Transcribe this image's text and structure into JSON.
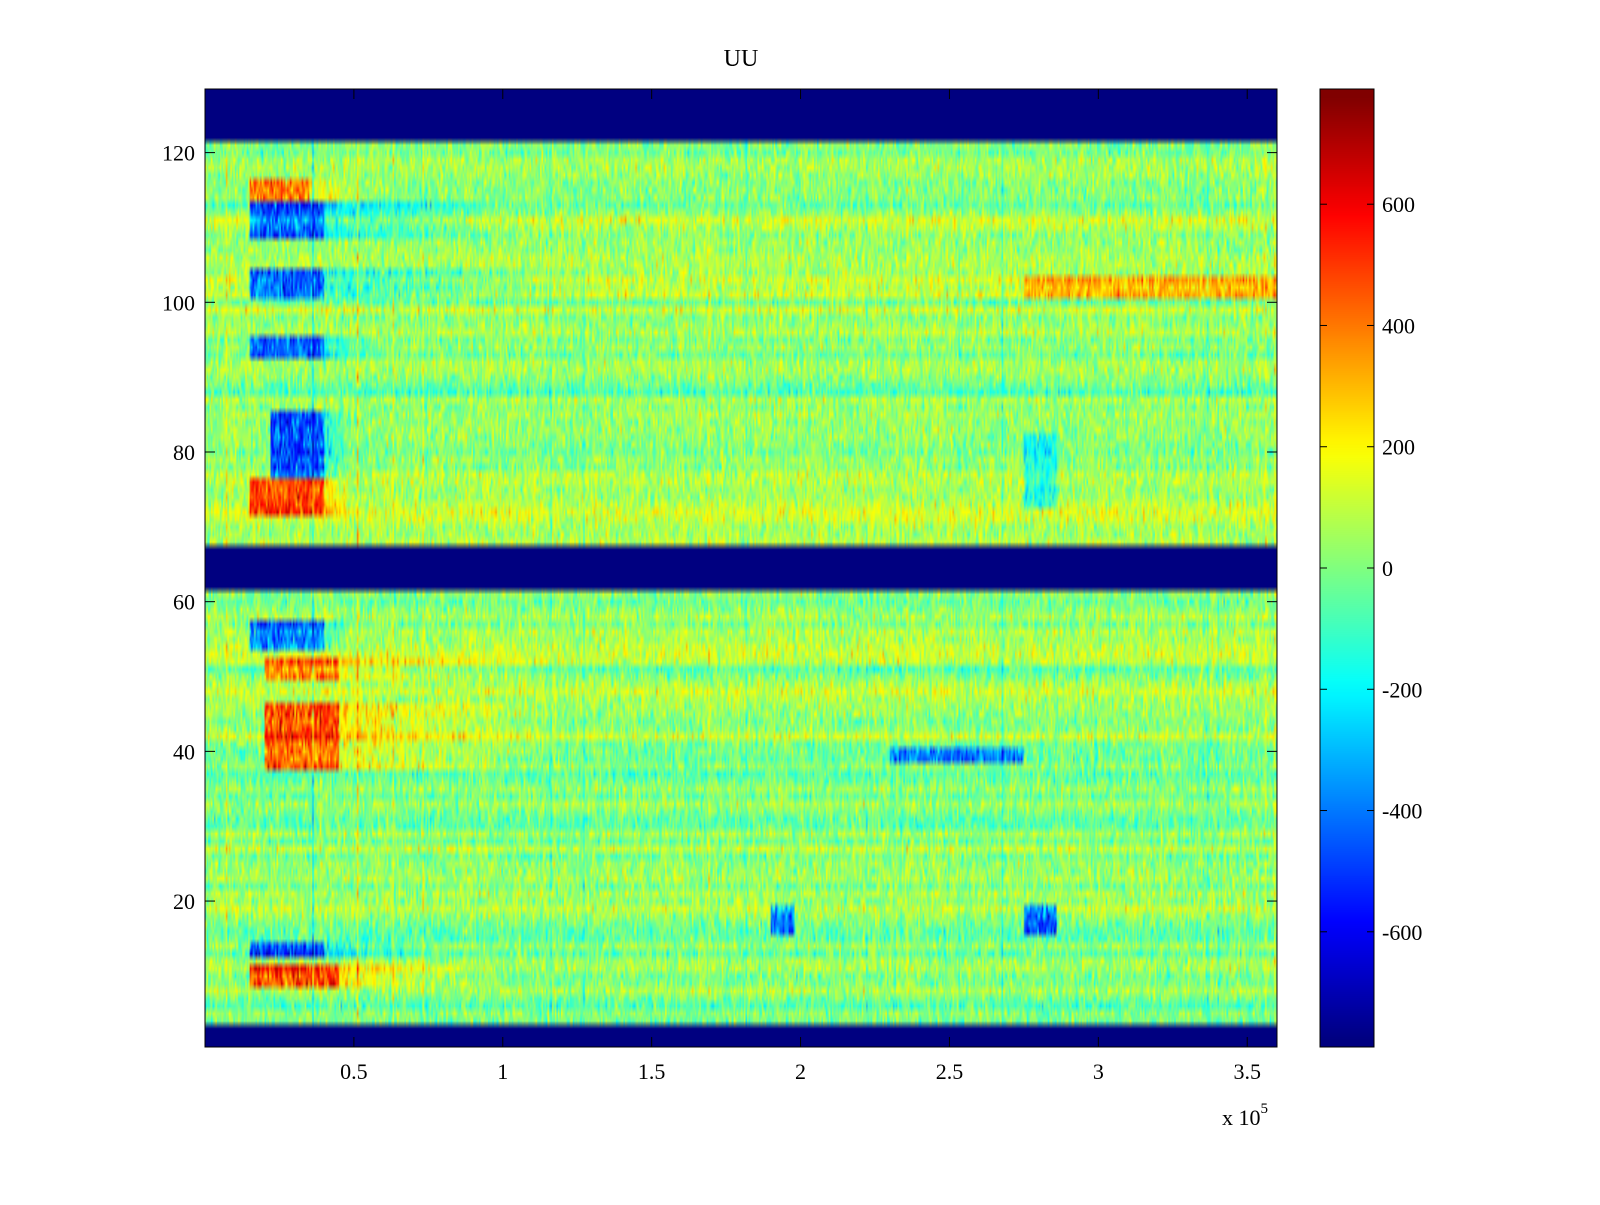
{
  "chart_data": {
    "type": "heatmap",
    "title": "UU",
    "xlabel": "",
    "ylabel": "",
    "x_multiplier_label": "x 10",
    "x_multiplier_exponent": "5",
    "xlim": [
      0,
      3.6
    ],
    "ylim": [
      0.5,
      128.5
    ],
    "x_ticks": [
      {
        "value": 0.5,
        "label": "0.5"
      },
      {
        "value": 1,
        "label": "1"
      },
      {
        "value": 1.5,
        "label": "1.5"
      },
      {
        "value": 2,
        "label": "2"
      },
      {
        "value": 2.5,
        "label": "2.5"
      },
      {
        "value": 3,
        "label": "3"
      },
      {
        "value": 3.5,
        "label": "3.5"
      }
    ],
    "y_ticks": [
      {
        "value": 20,
        "label": "20"
      },
      {
        "value": 40,
        "label": "40"
      },
      {
        "value": 60,
        "label": "60"
      },
      {
        "value": 80,
        "label": "80"
      },
      {
        "value": 100,
        "label": "100"
      },
      {
        "value": 120,
        "label": "120"
      }
    ],
    "colorbar": {
      "colormap": "jet",
      "limits": [
        -790,
        790
      ],
      "ticks": [
        {
          "value": -600,
          "label": "-600"
        },
        {
          "value": -400,
          "label": "-400"
        },
        {
          "value": -200,
          "label": "-200"
        },
        {
          "value": 0,
          "label": "0"
        },
        {
          "value": 200,
          "label": "200"
        },
        {
          "value": 400,
          "label": "400"
        },
        {
          "value": 600,
          "label": "600"
        }
      ]
    },
    "masked_rows": [
      [
        1,
        3
      ],
      [
        62,
        67
      ],
      [
        122,
        128
      ]
    ],
    "masked_value": -790,
    "base_value": 30,
    "row_offsets": [
      {
        "rows": [
          101,
          103
        ],
        "value": 80
      },
      {
        "rows": [
          110,
          112
        ],
        "value": 60
      },
      {
        "rows": [
          70,
          76
        ],
        "value": 40
      },
      {
        "rows": [
          52,
          56
        ],
        "value": 30
      },
      {
        "rows": [
          5,
          20
        ],
        "value": -20
      },
      {
        "rows": [
          40,
          40
        ],
        "value": -60
      }
    ],
    "features": [
      {
        "x": [
          0.15,
          0.4
        ],
        "rows": [
          101,
          104
        ],
        "value": -650,
        "fade_to": 1.3
      },
      {
        "x": [
          0.15,
          0.4
        ],
        "rows": [
          109,
          113
        ],
        "value": -600,
        "fade_to": 1.1
      },
      {
        "x": [
          0.22,
          0.4
        ],
        "rows": [
          77,
          85
        ],
        "value": -600,
        "fade_to": 0.5
      },
      {
        "x": [
          0.15,
          0.4
        ],
        "rows": [
          93,
          95
        ],
        "value": -550,
        "fade_to": 0.6
      },
      {
        "x": [
          0.15,
          0.4
        ],
        "rows": [
          54,
          57
        ],
        "value": -550,
        "fade_to": 0.5
      },
      {
        "x": [
          0.2,
          0.45
        ],
        "rows": [
          38,
          46
        ],
        "value": 550,
        "fade_to": 1.2
      },
      {
        "x": [
          0.15,
          0.45
        ],
        "rows": [
          9,
          11
        ],
        "value": 600,
        "fade_to": 1.0
      },
      {
        "x": [
          0.2,
          0.45
        ],
        "rows": [
          50,
          52
        ],
        "value": 500,
        "fade_to": 1.3
      },
      {
        "x": [
          0.15,
          0.4
        ],
        "rows": [
          13,
          14
        ],
        "value": -600,
        "fade_to": 0.8
      },
      {
        "x": [
          0.15,
          0.35
        ],
        "rows": [
          114,
          116
        ],
        "value": 500,
        "fade_to": 0.6
      },
      {
        "x": [
          0.15,
          0.4
        ],
        "rows": [
          72,
          76
        ],
        "value": 500,
        "fade_to": 0.5
      },
      {
        "x": [
          1.9,
          1.98
        ],
        "rows": [
          16,
          19
        ],
        "value": -500,
        "fade_to": 1.98
      },
      {
        "x": [
          2.75,
          2.86
        ],
        "rows": [
          16,
          19
        ],
        "value": -550,
        "fade_to": 2.86
      },
      {
        "x": [
          2.75,
          2.86
        ],
        "rows": [
          73,
          82
        ],
        "value": -250,
        "fade_to": 2.86
      },
      {
        "x": [
          2.75,
          3.6
        ],
        "rows": [
          101,
          103
        ],
        "value": 250,
        "fade_to": 3.6
      },
      {
        "x": [
          2.3,
          2.75
        ],
        "rows": [
          39,
          40
        ],
        "value": -450,
        "fade_to": 2.75
      }
    ]
  }
}
